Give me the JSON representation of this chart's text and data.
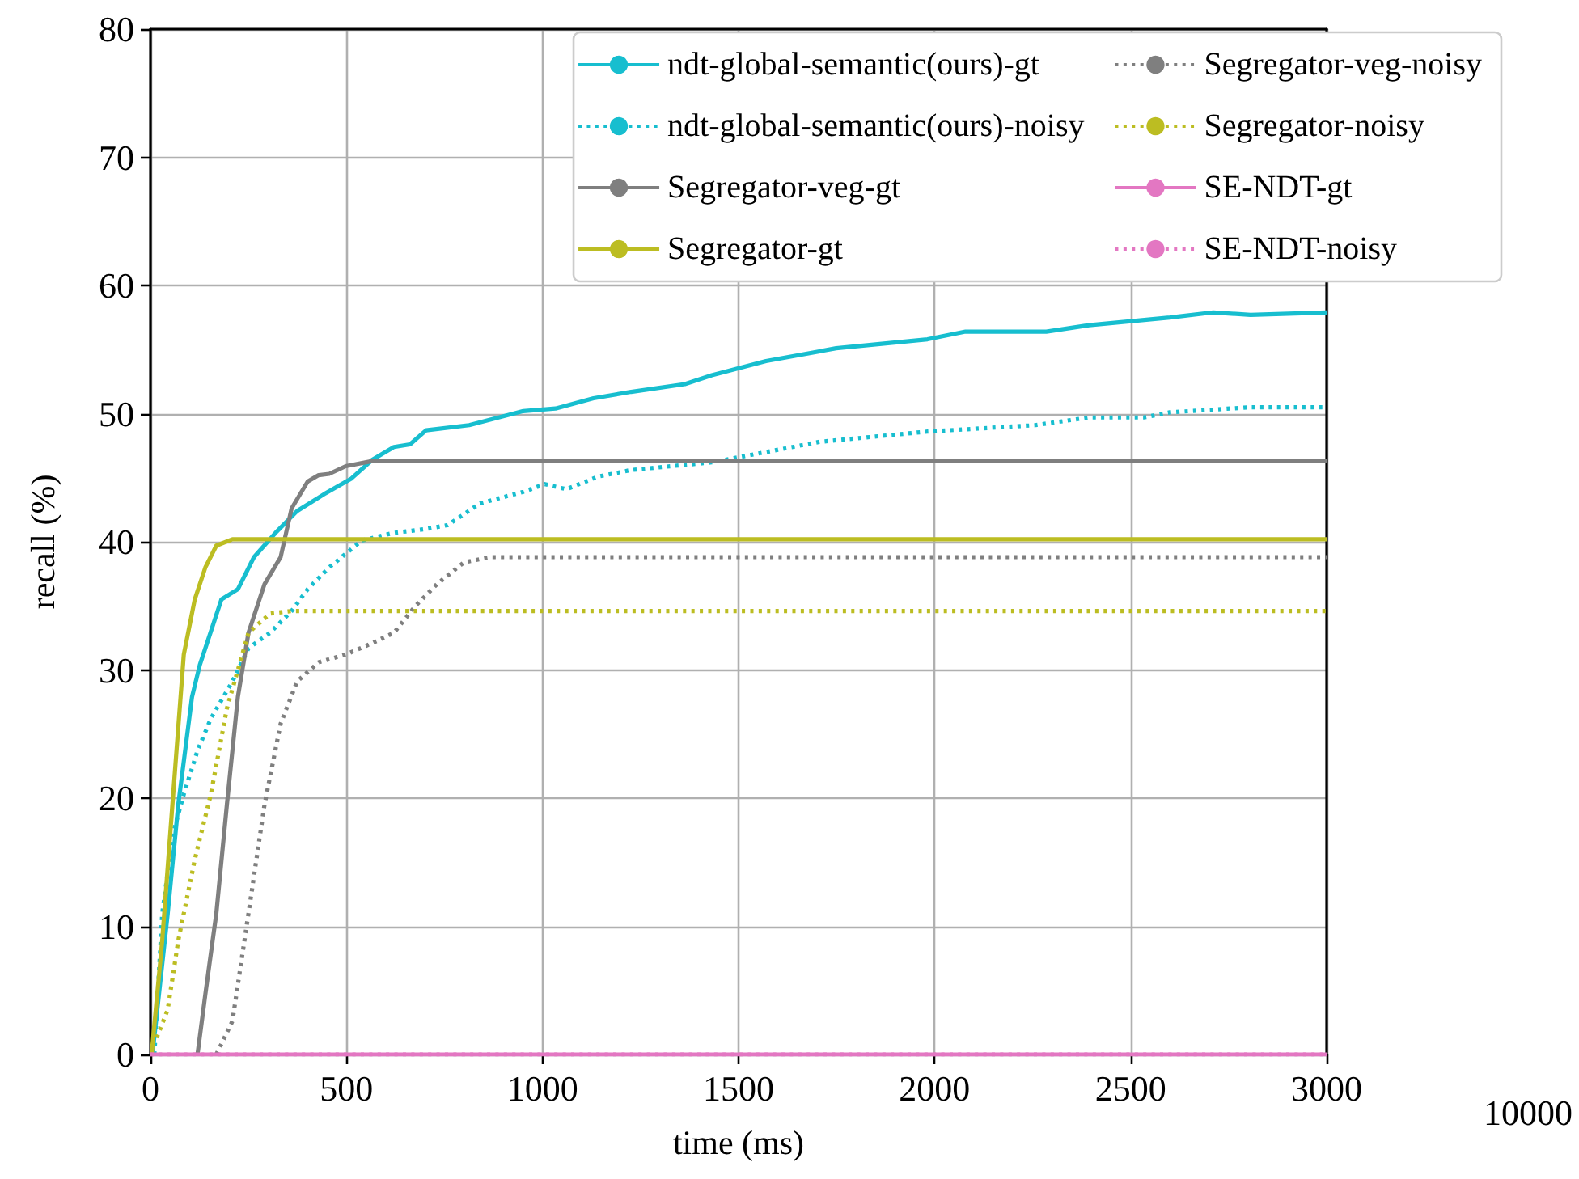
{
  "chart_data": {
    "type": "line",
    "xlabel": "time (ms)",
    "ylabel": "recall (%)",
    "xlim": [
      0,
      3000
    ],
    "xticks": [
      0,
      500,
      1000,
      1500,
      2000,
      2500,
      3000
    ],
    "ylim": [
      0,
      80
    ],
    "yticks": [
      0,
      10,
      20,
      30,
      40,
      50,
      60,
      70,
      80
    ],
    "grid": true,
    "legend": "top right",
    "marker": "none",
    "annotations": [
      "10000"
    ],
    "series": [
      {
        "name": "ndt-global-semantic(ours)-gt",
        "color": "#17becf",
        "line_style": "solid",
        "x": [
          5,
          44,
          71,
          106,
          126,
          181,
          223,
          264,
          319,
          374,
          442,
          511,
          566,
          621,
          662,
          703,
          813,
          951,
          1033,
          1130,
          1226,
          1363,
          1432,
          1570,
          1749,
          1982,
          2079,
          2285,
          2394,
          2600,
          2711,
          2806,
          3000
        ],
        "values": [
          0,
          11,
          19.5,
          27.9,
          30.4,
          35.5,
          36.3,
          38.8,
          40.7,
          42.4,
          43.7,
          44.9,
          46.4,
          47.4,
          47.6,
          48.7,
          49.1,
          50.2,
          50.4,
          51.2,
          51.7,
          52.3,
          53.0,
          54.1,
          55.1,
          55.8,
          56.4,
          56.4,
          56.9,
          57.5,
          57.9,
          57.7,
          57.9
        ]
      },
      {
        "name": "ndt-global-semantic(ours)-noisy",
        "color": "#17becf",
        "line_style": "dotted",
        "x": [
          10,
          30,
          58,
          85,
          120,
          154,
          209,
          250,
          305,
          360,
          401,
          456,
          539,
          621,
          703,
          758,
          841,
          951,
          1006,
          1061,
          1143,
          1226,
          1363,
          1432,
          1707,
          1982,
          2257,
          2394,
          2533,
          2600,
          2806,
          3000
        ],
        "values": [
          0,
          11,
          17.3,
          20.3,
          23.7,
          26.2,
          29.1,
          31.7,
          32.9,
          34.6,
          36.3,
          38,
          40.1,
          40.7,
          41,
          41.3,
          43,
          43.9,
          44.5,
          44.1,
          45.1,
          45.6,
          46,
          46.2,
          47.8,
          48.6,
          49.1,
          49.7,
          49.7,
          50.1,
          50.5,
          50.5
        ]
      },
      {
        "name": "Segregator-veg-gt",
        "color": "#7f7f7f",
        "line_style": "solid",
        "x": [
          120,
          140,
          168,
          195,
          223,
          250,
          291,
          332,
          360,
          401,
          429,
          456,
          498,
          566,
          3000
        ],
        "values": [
          0,
          4.7,
          11,
          19.5,
          27.9,
          32.9,
          36.7,
          38.8,
          42.6,
          44.7,
          45.2,
          45.3,
          45.9,
          46.3,
          46.3
        ]
      },
      {
        "name": "Segregator-gt",
        "color": "#bcbd22",
        "line_style": "solid",
        "x": [
          3,
          30,
          58,
          85,
          113,
          140,
          168,
          209,
          3000
        ],
        "values": [
          0,
          8.9,
          20.3,
          31.2,
          35.5,
          38,
          39.7,
          40.2,
          40.2
        ]
      },
      {
        "name": "Segregator-veg-noisy",
        "color": "#7f7f7f",
        "line_style": "dotted",
        "x": [
          168,
          209,
          250,
          291,
          332,
          374,
          429,
          498,
          566,
          621,
          676,
          731,
          800,
          868,
          3000
        ],
        "values": [
          0,
          2.6,
          11,
          19.5,
          25.8,
          29.1,
          30.6,
          31.2,
          32.1,
          32.9,
          35,
          36.7,
          38.4,
          38.8,
          38.8
        ]
      },
      {
        "name": "Segregator-noisy",
        "color": "#bcbd22",
        "line_style": "dotted",
        "x": [
          16,
          44,
          71,
          113,
          154,
          195,
          250,
          305,
          360,
          3000
        ],
        "values": [
          1.3,
          3.5,
          8.9,
          15.2,
          20.3,
          27,
          32.9,
          34.4,
          34.6,
          34.6
        ]
      },
      {
        "name": "SE-NDT-gt",
        "color": "#e377c2",
        "line_style": "solid",
        "x": [
          0,
          3000
        ],
        "values": [
          0,
          0
        ]
      },
      {
        "name": "SE-NDT-noisy",
        "color": "#e377c2",
        "line_style": "dotted",
        "x": [
          0,
          3000
        ],
        "values": [
          0,
          0
        ]
      }
    ]
  }
}
